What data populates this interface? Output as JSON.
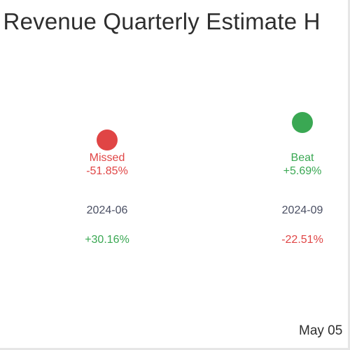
{
  "header": {
    "title": ") Revenue Quarterly Estimate H"
  },
  "footer": {
    "date": "May 05"
  },
  "colors": {
    "missed": "#e04545",
    "beat": "#3aa853",
    "period_text": "#4a4f63",
    "title_text": "#2e2e2e"
  },
  "chart_data": {
    "type": "scatter",
    "title": ") Revenue Quarterly Estimate H",
    "categories": [
      "2024-06",
      "2024-09"
    ],
    "series": [
      {
        "values": [
          -51.85,
          5.69
        ]
      }
    ],
    "points": [
      {
        "period": "2024-06",
        "status": "Missed",
        "surprise": "-51.85%",
        "surprise_value": -51.85,
        "change": "+30.16%",
        "change_value": 30.16,
        "marker_color": "#e04545"
      },
      {
        "period": "2024-09",
        "status": "Beat",
        "surprise": "+5.69%",
        "surprise_value": 5.69,
        "change": "-22.51%",
        "change_value": -22.51,
        "marker_color": "#3aa853"
      }
    ],
    "grid": false,
    "legend": "none"
  }
}
